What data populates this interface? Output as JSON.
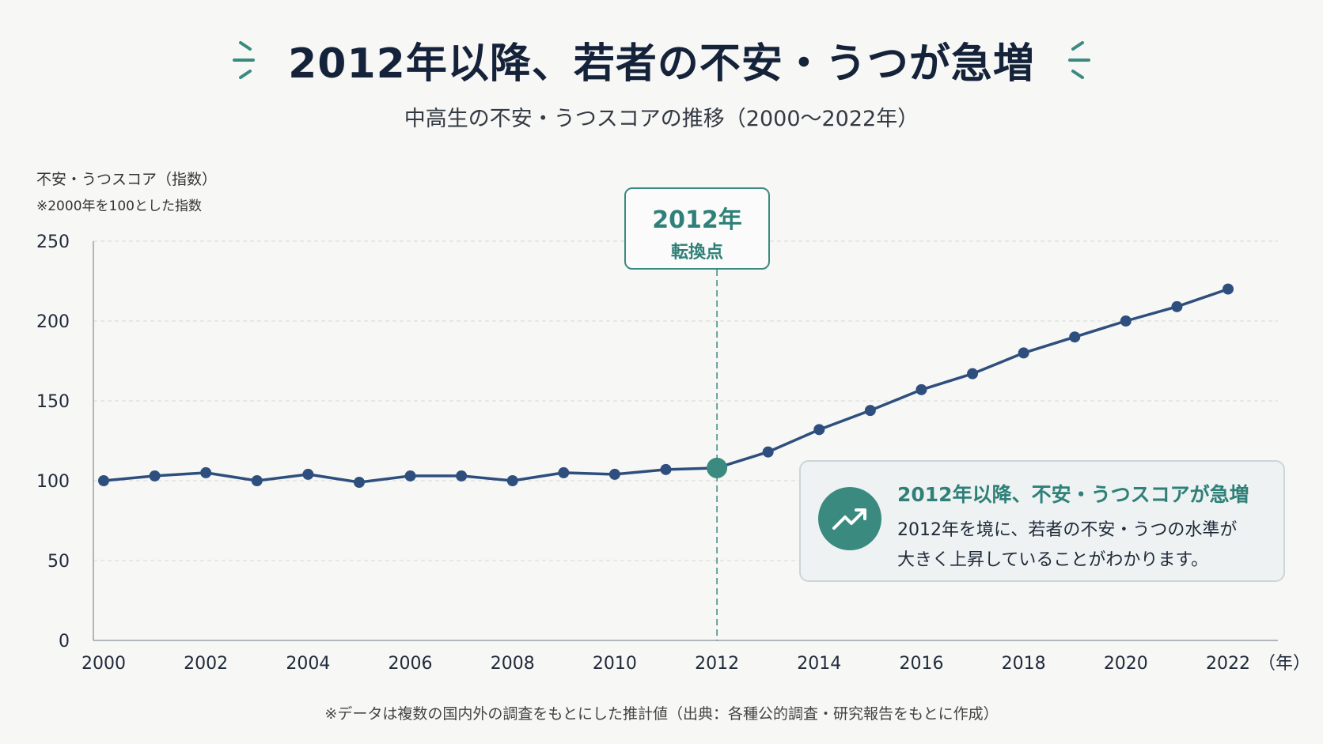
{
  "title": "2012年以降、若者の不安・うつが急増",
  "subtitle": "中高生の不安・うつスコアの推移（2000〜2022年）",
  "y_axis_label": "不安・うつスコア（指数）",
  "y_axis_note": "※2000年を100とした指数",
  "x_unit": "（年）",
  "turning_point": {
    "year_label": "2012年",
    "label": "転換点"
  },
  "callout": {
    "title": "2012年以降、不安・うつスコアが急増",
    "body_line1": "2012年を境に、若者の不安・うつの水準が",
    "body_line2": "大きく上昇していることがわかります。",
    "icon": "trend-up-icon"
  },
  "footnote": "※データは複数の国内外の調査をもとにした推計値（出典：各種公的調査・研究報告をもとに作成）",
  "colors": {
    "line": "#2e4f7e",
    "accent": "#3b8a80",
    "grid": "#d6d9dc"
  },
  "chart_data": {
    "type": "line",
    "x": [
      2000,
      2001,
      2002,
      2003,
      2004,
      2005,
      2006,
      2007,
      2008,
      2009,
      2010,
      2011,
      2012,
      2013,
      2014,
      2015,
      2016,
      2017,
      2018,
      2019,
      2020,
      2021,
      2022
    ],
    "series": [
      {
        "values": [
          100,
          103,
          105,
          100,
          104,
          99,
          103,
          103,
          100,
          105,
          104,
          107,
          108,
          118,
          132,
          144,
          157,
          167,
          180,
          190,
          200,
          209,
          220
        ]
      }
    ],
    "xticks": [
      "2000",
      "2002",
      "2004",
      "2006",
      "2008",
      "2010",
      "2012",
      "2014",
      "2016",
      "2018",
      "2020",
      "2022"
    ],
    "yticks": [
      "0",
      "50",
      "100",
      "150",
      "200",
      "250"
    ],
    "ylim": [
      0,
      250
    ],
    "xlim": [
      2000,
      2022
    ],
    "highlight_x": 2012,
    "grid": true
  }
}
